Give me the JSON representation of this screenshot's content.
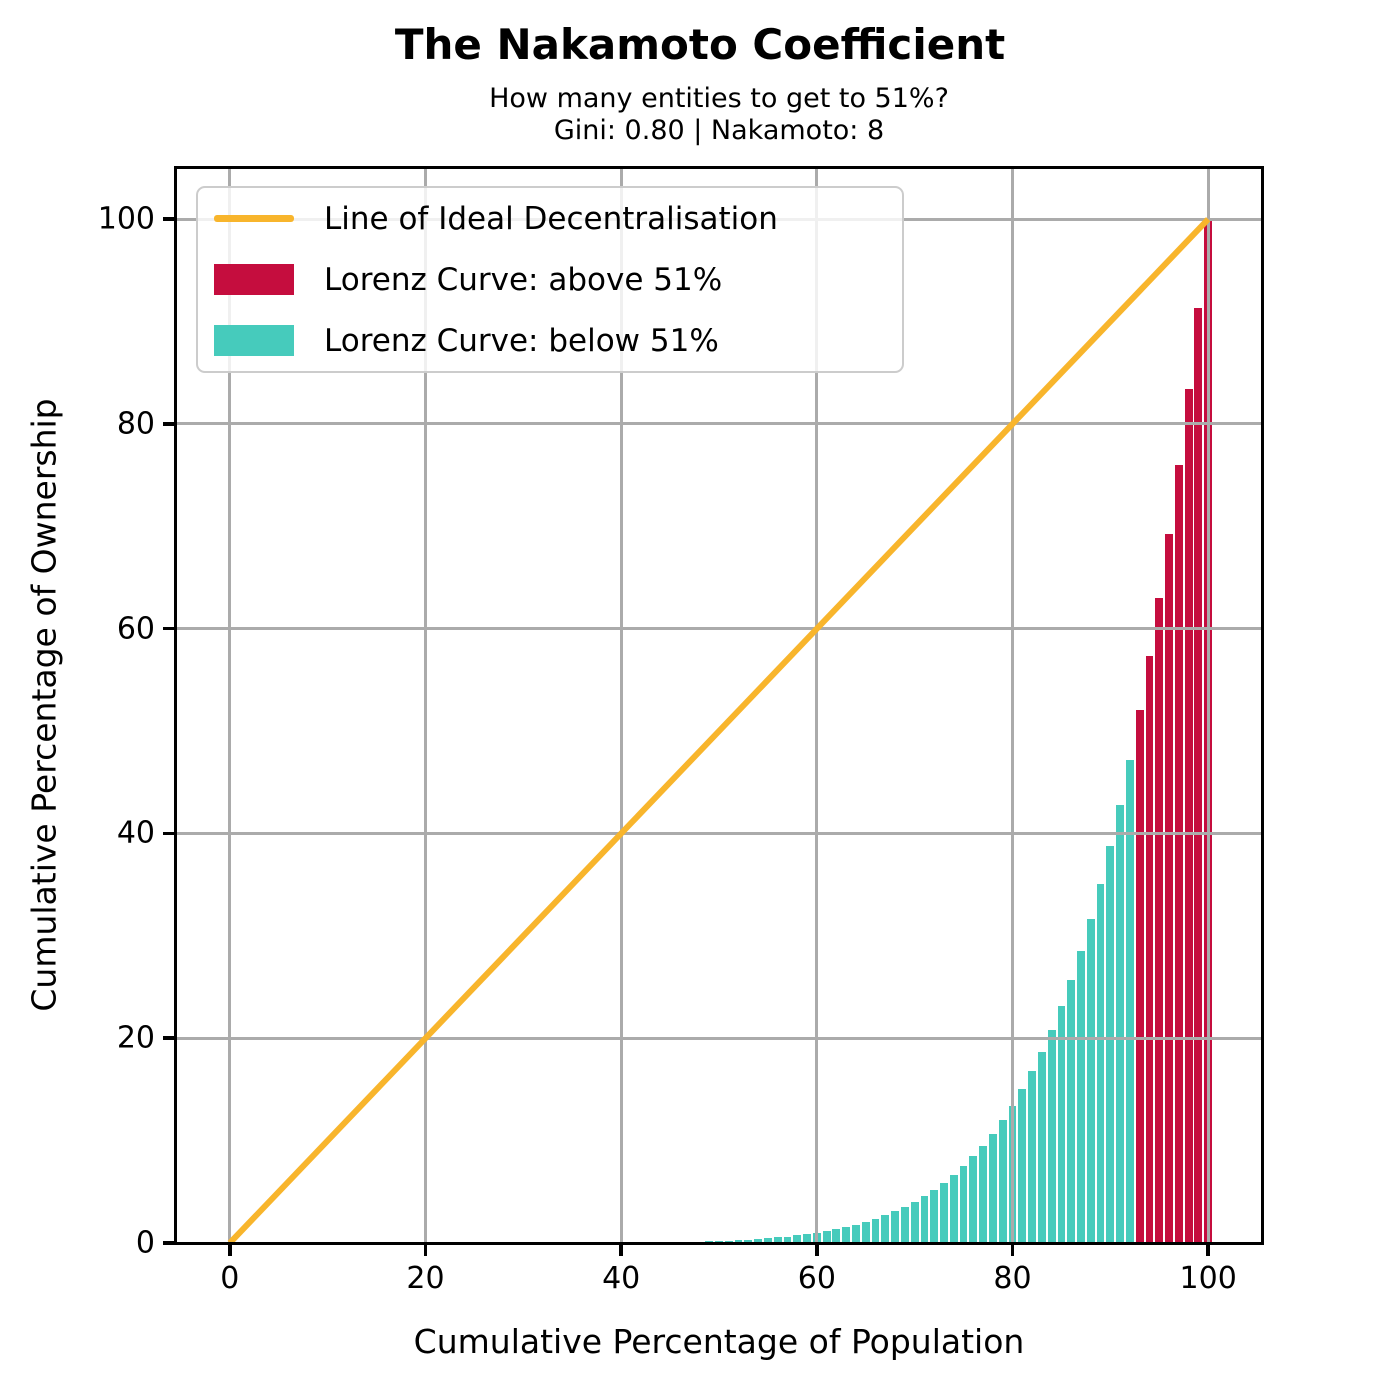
{
  "legend": {
    "position": "upper-left",
    "items": [
      {
        "label": "Line of Ideal Decentralisation",
        "type": "line",
        "color": "#F8B52C"
      },
      {
        "label": "Lorenz Curve: above 51%",
        "type": "patch",
        "color": "#C50D3E"
      },
      {
        "label": "Lorenz Curve: below 51%",
        "type": "patch",
        "color": "#46CBBC"
      }
    ]
  },
  "chart_data": {
    "type": "bar",
    "title": "The Nakamoto Coefficient",
    "subtitle": "How many entities to get to 51%?",
    "stats_line": "Gini: 0.80 | Nakamoto: 8",
    "gini": 0.8,
    "nakamoto_coefficient": 8,
    "n_entities": 100,
    "threshold_percent": 51,
    "xlabel": "Cumulative Percentage of Population",
    "ylabel": "Cumulative Percentage of Ownership",
    "xlim": [
      -5.5,
      105.5
    ],
    "ylim": [
      0,
      105
    ],
    "grid": true,
    "grid_color": "#ABABAB",
    "x_ticks": [
      {
        "value": 0,
        "label": "0"
      },
      {
        "value": 20,
        "label": "20"
      },
      {
        "value": 40,
        "label": "40"
      },
      {
        "value": 60,
        "label": "60"
      },
      {
        "value": 80,
        "label": "80"
      },
      {
        "value": 100,
        "label": "100"
      }
    ],
    "y_ticks": [
      {
        "value": 0,
        "label": "0"
      },
      {
        "value": 20,
        "label": "20"
      },
      {
        "value": 40,
        "label": "40"
      },
      {
        "value": 60,
        "label": "60"
      },
      {
        "value": 80,
        "label": "80"
      },
      {
        "value": 100,
        "label": "100"
      }
    ],
    "ideal_line": {
      "name": "Line of Ideal Decentralisation",
      "from": [
        0,
        0
      ],
      "to": [
        100,
        100
      ],
      "color": "#F8B52C",
      "width": 6
    },
    "bars": {
      "name": "Lorenz Curve (cumulative ownership % vs population %)",
      "bar_width": 0.8,
      "color_below": "#46CBBC",
      "color_above": "#C50D3E",
      "above_start_x": 93,
      "x": [
        1,
        2,
        3,
        4,
        5,
        6,
        7,
        8,
        9,
        10,
        11,
        12,
        13,
        14,
        15,
        16,
        17,
        18,
        19,
        20,
        21,
        22,
        23,
        24,
        25,
        26,
        27,
        28,
        29,
        30,
        31,
        32,
        33,
        34,
        35,
        36,
        37,
        38,
        39,
        40,
        41,
        42,
        43,
        44,
        45,
        46,
        47,
        48,
        49,
        50,
        51,
        52,
        53,
        54,
        55,
        56,
        57,
        58,
        59,
        60,
        61,
        62,
        63,
        64,
        65,
        66,
        67,
        68,
        69,
        70,
        71,
        72,
        73,
        74,
        75,
        76,
        77,
        78,
        79,
        80,
        81,
        82,
        83,
        84,
        85,
        86,
        87,
        88,
        89,
        90,
        91,
        92,
        93,
        94,
        95,
        96,
        97,
        98,
        99,
        100
      ],
      "values": [
        0,
        0,
        0,
        0,
        0,
        0,
        0,
        0,
        0,
        0,
        0,
        0,
        0,
        0,
        0,
        0,
        0,
        0,
        0,
        0,
        0,
        0,
        0,
        0,
        0,
        0.001,
        0.001,
        0.001,
        0.001,
        0.002,
        0.003,
        0.004,
        0.005,
        0.006,
        0.008,
        0.01,
        0.013,
        0.017,
        0.021,
        0.026,
        0.033,
        0.041,
        0.05,
        0.062,
        0.076,
        0.093,
        0.113,
        0.137,
        0.165,
        0.195,
        0.233,
        0.278,
        0.33,
        0.39,
        0.461,
        0.542,
        0.635,
        0.743,
        0.866,
        1.008,
        1.169,
        1.354,
        1.563,
        1.801,
        2.071,
        2.376,
        2.721,
        3.109,
        3.545,
        4.035,
        4.585,
        5.2,
        5.887,
        6.654,
        7.508,
        8.459,
        9.515,
        10.687,
        11.985,
        13.422,
        15.009,
        16.762,
        18.694,
        20.822,
        23.162,
        25.733,
        28.552,
        31.648,
        35.036,
        38.742,
        42.793,
        47.216,
        52.041,
        57.299,
        63.025,
        69.253,
        76.023,
        83.374,
        91.352,
        100.0
      ]
    }
  }
}
